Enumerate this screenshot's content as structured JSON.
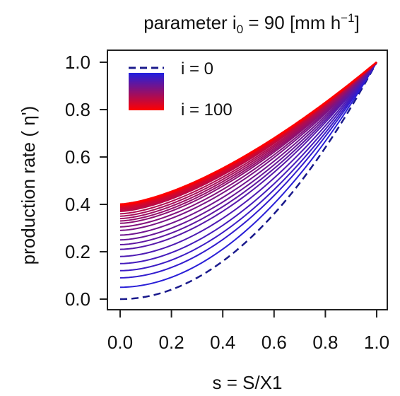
{
  "chart_data": {
    "type": "line",
    "title": {
      "prefix": "parameter i",
      "sub": "0",
      "middle": " = 90 [mm h",
      "sup": "−1",
      "suffix": "]"
    },
    "xlabel": "s = S/X1",
    "ylabel": "production rate ( η')",
    "xlim": [
      0,
      1
    ],
    "ylim": [
      0,
      1
    ],
    "xticks": [
      "0.0",
      "0.2",
      "0.4",
      "0.6",
      "0.8",
      "1.0"
    ],
    "yticks": [
      "0.0",
      "0.2",
      "0.4",
      "0.6",
      "0.8",
      "1.0"
    ],
    "grid": false,
    "legend": {
      "position": "top-left",
      "entries": [
        {
          "label": "i = 0",
          "style": "dashed",
          "color": "#1a1a8c"
        },
        {
          "label": "i = 100",
          "style": "gradient",
          "color_from": "#2020e0",
          "color_to": "#ff0000"
        }
      ]
    },
    "colors": {
      "start": "#1a1a8c",
      "low": "#2020e0",
      "high": "#ff0000"
    },
    "series": [
      {
        "i": 0,
        "style": "dashed",
        "x": [
          0,
          0.2,
          0.4,
          0.6,
          0.8,
          1.0
        ],
        "y": [
          0.0,
          0.04,
          0.16,
          0.36,
          0.64,
          1.0
        ]
      },
      {
        "i": 100,
        "style": "solid",
        "x": [
          0,
          0.2,
          0.4,
          0.6,
          0.8,
          1.0
        ],
        "y": [
          0.4,
          0.44,
          0.54,
          0.66,
          0.81,
          1.0
        ]
      }
    ],
    "intermediate_starts_y": [
      0.05,
      0.09,
      0.12,
      0.15,
      0.18,
      0.21,
      0.23,
      0.25,
      0.27,
      0.29,
      0.305,
      0.32,
      0.33,
      0.34,
      0.35,
      0.36,
      0.37,
      0.375,
      0.38,
      0.385,
      0.39,
      0.393,
      0.396,
      0.398
    ]
  }
}
